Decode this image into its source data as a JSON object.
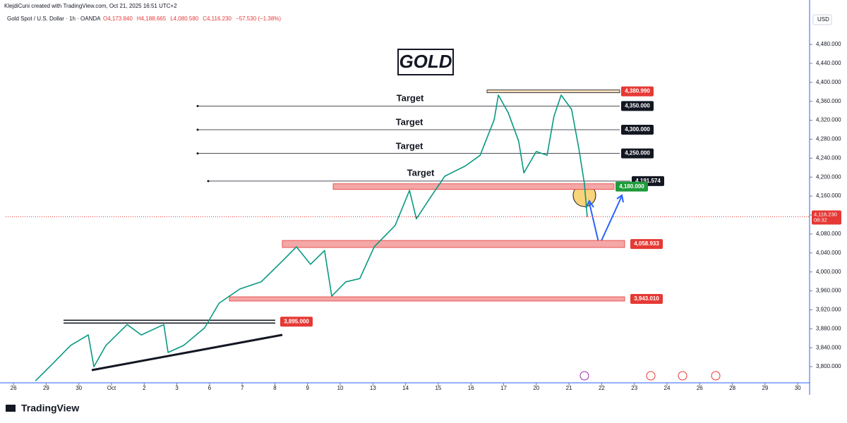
{
  "chart_data": {
    "type": "line",
    "attribution": "KlejdiCuni created with TradingView.com, Oct 21, 2025 16:51 UTC+2",
    "symbol": "Gold Spot / U.S. Dollar · 1h · OANDA",
    "ohlc": [
      "O4,173.840",
      "H4,188.665",
      "L4,080.580",
      "C4,116.230",
      "−57.530 (−1.38%)"
    ],
    "title": "GOLD",
    "currency": "USD",
    "brand": "TradingView",
    "annotations": [
      "Target",
      "Target",
      "Target",
      "Target"
    ],
    "series": [
      {
        "name": "XAUUSD",
        "color": "#089981",
        "x": [
          0.67,
          1.21,
          1.75,
          2.29,
          2.46,
          2.83,
          3.48,
          3.91,
          4.6,
          4.73,
          5.21,
          5.85,
          6.29,
          6.93,
          7.58,
          8.23,
          8.66,
          9.09,
          9.52,
          9.74,
          10.17,
          10.6,
          11.04,
          11.68,
          12.12,
          12.33,
          12.76,
          13.2,
          13.84,
          14.28,
          14.71,
          14.84,
          15.14,
          15.46,
          15.62,
          16.0,
          16.33,
          16.54,
          16.76,
          17.08,
          17.3,
          17.47,
          17.56
        ],
        "values": [
          3770,
          3807,
          3845,
          3867,
          3800,
          3845,
          3889,
          3867,
          3889,
          3830,
          3845,
          3882,
          3934,
          3964,
          3979,
          4023,
          4053,
          4016,
          4045,
          3949,
          3979,
          3986,
          4053,
          4098,
          4172,
          4112,
          4157,
          4202,
          4224,
          4246,
          4321,
          4373,
          4336,
          4276,
          4209,
          4254,
          4246,
          4328,
          4373,
          4343,
          4261,
          4187,
          4116
        ]
      }
    ],
    "levels": [
      {
        "value": 4380.99,
        "label": "4,380.990",
        "color": "#e53935"
      },
      {
        "value": 4350,
        "label": "4,350.000",
        "color": "#131722"
      },
      {
        "value": 4300,
        "label": "4,300.000",
        "color": "#131722"
      },
      {
        "value": 4250,
        "label": "4,250.000",
        "color": "#131722"
      },
      {
        "value": 4191.574,
        "label": "4,191.574",
        "color": "#131722"
      },
      {
        "value": 4180,
        "label": "4,180.000",
        "color": "#1e9b3a"
      },
      {
        "value": 4058.933,
        "label": "4,058.933",
        "color": "#e53935"
      },
      {
        "value": 3943.01,
        "label": "3,943.010",
        "color": "#e53935"
      },
      {
        "value": 3895,
        "label": "3,895.000",
        "color": "#e53935"
      }
    ],
    "last_price": {
      "value": 4116.23,
      "label": "4,116.230",
      "countdown": "08:32",
      "color": "#e53935"
    },
    "xlim": [
      -0.24,
      24.32
    ],
    "xticks": [
      {
        "value": 0,
        "label": "26"
      },
      {
        "value": 1,
        "label": "29"
      },
      {
        "value": 2,
        "label": "30"
      },
      {
        "value": 3,
        "label": "Oct"
      },
      {
        "value": 4,
        "label": "2"
      },
      {
        "value": 5,
        "label": "3"
      },
      {
        "value": 6,
        "label": "6"
      },
      {
        "value": 7,
        "label": "7"
      },
      {
        "value": 8,
        "label": "8"
      },
      {
        "value": 9,
        "label": "9"
      },
      {
        "value": 10,
        "label": "10"
      },
      {
        "value": 11,
        "label": "13"
      },
      {
        "value": 12,
        "label": "14"
      },
      {
        "value": 13,
        "label": "15"
      },
      {
        "value": 14,
        "label": "16"
      },
      {
        "value": 15,
        "label": "17"
      },
      {
        "value": 16,
        "label": "20"
      },
      {
        "value": 17,
        "label": "21"
      },
      {
        "value": 18,
        "label": "22"
      },
      {
        "value": 19,
        "label": "23"
      },
      {
        "value": 20,
        "label": "24"
      },
      {
        "value": 21,
        "label": "26"
      },
      {
        "value": 22,
        "label": "28"
      },
      {
        "value": 23,
        "label": "29"
      },
      {
        "value": 24,
        "label": "30"
      }
    ],
    "ylim": [
      3763,
      4544
    ],
    "yticks": [
      {
        "value": 3800,
        "label": "3,800.000"
      },
      {
        "value": 3840,
        "label": "3,840.000"
      },
      {
        "value": 3880,
        "label": "3,880.000"
      },
      {
        "value": 3920,
        "label": "3,920.000"
      },
      {
        "value": 3960,
        "label": "3,960.000"
      },
      {
        "value": 4000,
        "label": "4,000.000"
      },
      {
        "value": 4040,
        "label": "4,040.000"
      },
      {
        "value": 4080,
        "label": "4,080.000"
      },
      {
        "value": 4120,
        "label": "4,120.000"
      },
      {
        "value": 4160,
        "label": "4,160.000"
      },
      {
        "value": 4200,
        "label": "4,200.000"
      },
      {
        "value": 4240,
        "label": "4,240.000"
      },
      {
        "value": 4280,
        "label": "4,280.000"
      },
      {
        "value": 4320,
        "label": "4,320.000"
      },
      {
        "value": 4360,
        "label": "4,360.000"
      },
      {
        "value": 4400,
        "label": "4,400.000"
      },
      {
        "value": 4440,
        "label": "4,440.000"
      },
      {
        "value": 4480,
        "label": "4,480.000"
      }
    ]
  }
}
